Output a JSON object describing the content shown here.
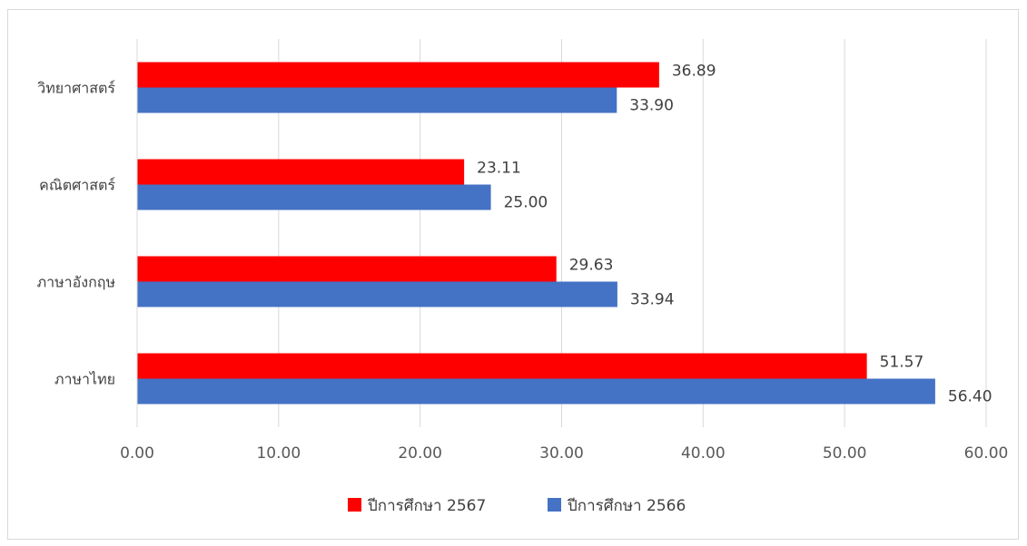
{
  "chart_data": {
    "type": "bar",
    "orientation": "horizontal",
    "categories": [
      "ภาษาไทย",
      "ภาษาอังกฤษ",
      "คณิตศาสตร์",
      "วิทยาศาสตร์"
    ],
    "series": [
      {
        "name": "ปีการศึกษา 2567",
        "color": "#ff0000",
        "values": [
          51.57,
          29.63,
          23.11,
          36.89
        ],
        "labels": [
          "51.57",
          "29.63",
          "23.11",
          "36.89"
        ]
      },
      {
        "name": "ปีการศึกษา 2566",
        "color": "#4472c4",
        "values": [
          56.4,
          33.94,
          25.0,
          33.9
        ],
        "labels": [
          "56.40",
          "33.94",
          "25.00",
          "33.90"
        ]
      }
    ],
    "xlim": [
      0,
      60
    ],
    "xticks": [
      0,
      10,
      20,
      30,
      40,
      50,
      60
    ],
    "xtick_labels": [
      "0.00",
      "10.00",
      "20.00",
      "30.00",
      "40.00",
      "50.00",
      "60.00"
    ],
    "grid": true,
    "legend_position": "bottom"
  }
}
